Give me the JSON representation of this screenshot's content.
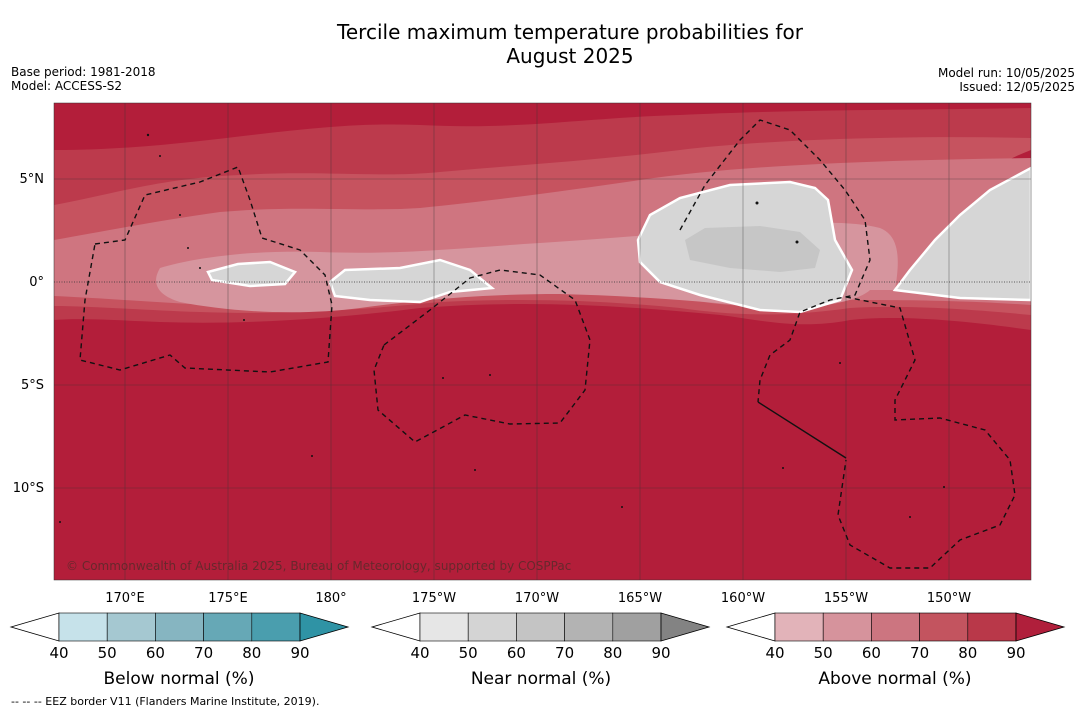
{
  "title_line1": "Tercile maximum temperature probabilities for",
  "title_line2": "August 2025",
  "base_period": "Base period: 1981-2018",
  "model": "Model: ACCESS-S2",
  "model_run": "Model run: 10/05/2025",
  "issued": "Issued: 12/05/2025",
  "copyright": "© Commonwealth of Australia 2025, Bureau of Meteorology, supported by COSPPac",
  "footnote": "--  --  -- EEZ border V11 (Flanders Marine Institute, 2019).",
  "lat_labels": [
    "5°N",
    "0°",
    "5°S",
    "10°S"
  ],
  "lon_labels": [
    "170°E",
    "175°E",
    "180°",
    "175°W",
    "170°W",
    "165°W",
    "160°W",
    "155°W",
    "150°W"
  ],
  "colorbars": [
    {
      "title": "Below normal (%)",
      "ticks": [
        "40",
        "50",
        "60",
        "70",
        "80",
        "90"
      ],
      "colors": [
        "#ffffff",
        "#c6e2ea",
        "#a5c8d1",
        "#86b5c1",
        "#66a8b6",
        "#4a9eae",
        "#2f93a5"
      ]
    },
    {
      "title": "Near normal (%)",
      "ticks": [
        "40",
        "50",
        "60",
        "70",
        "80",
        "90"
      ],
      "colors": [
        "#ffffff",
        "#e6e6e6",
        "#d4d4d4",
        "#c4c4c4",
        "#b3b3b3",
        "#a0a0a0",
        "#838383"
      ]
    },
    {
      "title": "Above normal (%)",
      "ticks": [
        "40",
        "50",
        "60",
        "70",
        "80",
        "90"
      ],
      "colors": [
        "#ffffff",
        "#e2b3b9",
        "#d6939c",
        "#cc7580",
        "#c3545f",
        "#b93849",
        "#b01f3b"
      ]
    }
  ],
  "map_colors": {
    "above_90": "#b31e3a",
    "above_80": "#bc3a4c",
    "above_70": "#c6535f",
    "above_60": "#cf7580",
    "above_50": "#d6959e",
    "near": "#d6d6d6",
    "near_dark": "#c6c6c6"
  }
}
